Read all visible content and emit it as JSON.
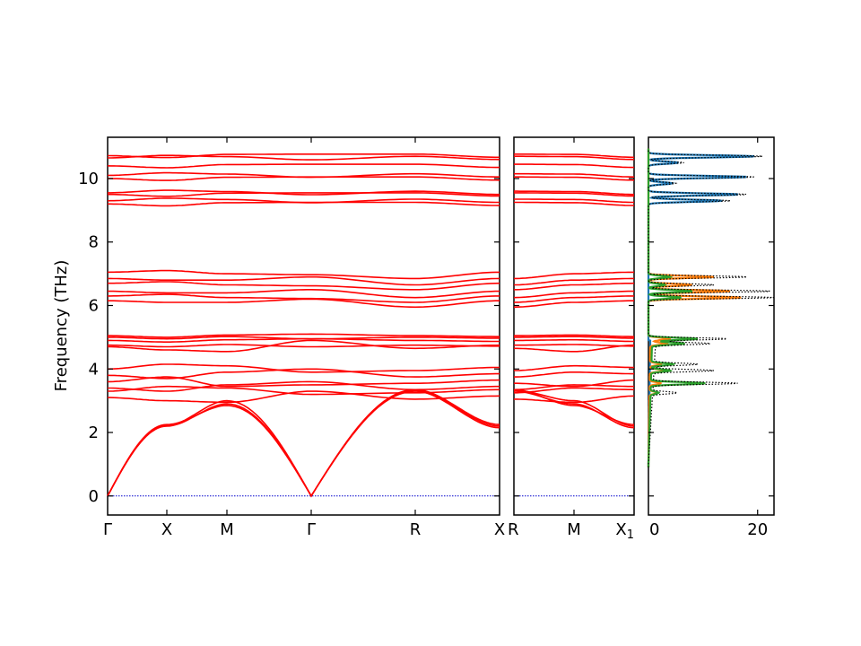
{
  "chart_data": {
    "type": "line",
    "ylabel": "Frequency (THz)",
    "ylim": [
      -0.6,
      11.3
    ],
    "yticks": [
      0,
      2,
      4,
      6,
      8,
      10
    ],
    "ytick_labels": [
      "0",
      "2",
      "4",
      "6",
      "8",
      "10"
    ],
    "band_color": "#ff0000",
    "zero_line_color": "#0000cc",
    "panels": [
      {
        "path_labels": [
          "Γ",
          "X",
          "M",
          "Γ",
          "R",
          "X"
        ],
        "bands_approx_thz": {
          "acoustic_at_X": 2.2,
          "acoustic_at_M": 2.9,
          "acoustic_at_R": 3.3,
          "acoustic_end_X": 2.15,
          "optical_group_1": [
            3.1,
            3.3,
            3.4,
            3.6,
            3.8,
            4.0,
            4.7
          ],
          "optical_group_2": [
            4.75,
            4.9,
            5.0,
            5.05
          ],
          "optical_group_3": [
            6.15,
            6.3,
            6.45,
            6.7,
            6.85,
            7.05
          ],
          "optical_group_4": [
            9.2,
            9.3,
            9.5,
            9.55,
            10.0,
            10.1,
            10.4,
            10.65,
            10.72
          ]
        }
      },
      {
        "path_labels": [
          "R",
          "M",
          "X"
        ],
        "end_label_subscript": "1"
      }
    ],
    "dos": {
      "xlim": [
        0,
        23
      ],
      "xticks": [
        0,
        20
      ],
      "xtick_labels": [
        "0",
        "20"
      ],
      "series_colors": [
        "#1f77b4",
        "#ff7f0e",
        "#2ca02c"
      ],
      "total_color": "#000000",
      "peaks_thz": [
        {
          "f": 10.7,
          "total": 21.0,
          "s0": 19.5
        },
        {
          "f": 10.5,
          "total": 6.5,
          "s0": 5.5
        },
        {
          "f": 10.05,
          "total": 19.5,
          "s0": 18.0
        },
        {
          "f": 9.85,
          "total": 5.0,
          "s0": 4.3
        },
        {
          "f": 9.5,
          "total": 18.0,
          "s0": 16.5
        },
        {
          "f": 9.3,
          "total": 15.0,
          "s0": 13.5
        },
        {
          "f": 6.9,
          "total": 18.0,
          "s1": 12.0,
          "s2": 4.0
        },
        {
          "f": 6.65,
          "total": 12.0,
          "s1": 8.0,
          "s2": 3.0
        },
        {
          "f": 6.45,
          "total": 22.5,
          "s1": 15.0,
          "s2": 8.0
        },
        {
          "f": 6.25,
          "total": 23.0,
          "s1": 17.0,
          "s2": 6.0
        },
        {
          "f": 4.95,
          "total": 14.5,
          "s2": 9.0,
          "s1": 4.0
        },
        {
          "f": 4.8,
          "total": 10.0,
          "s2": 6.0,
          "s1": 3.0
        },
        {
          "f": 4.15,
          "total": 8.0,
          "s2": 4.0,
          "s1": 2.0
        },
        {
          "f": 3.95,
          "total": 11.0,
          "s2": 3.5,
          "s1": 3.0
        },
        {
          "f": 3.55,
          "total": 15.5,
          "s2": 10.0,
          "s1": 2.0
        },
        {
          "f": 3.25,
          "total": 4.5,
          "s1": 1.5,
          "s2": 1.5
        }
      ]
    }
  }
}
